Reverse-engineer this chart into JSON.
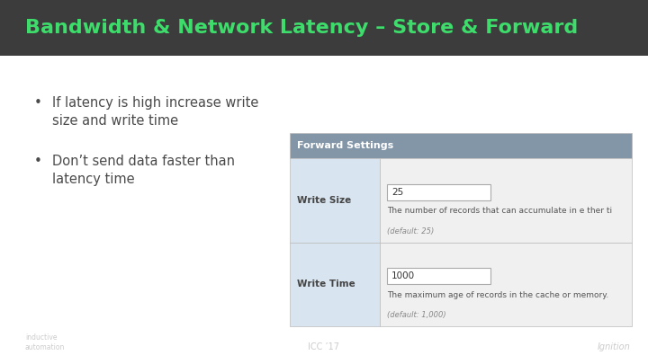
{
  "title": "Bandwidth & Network Latency – Store & Forward",
  "title_bg_color": "#3c3c3c",
  "title_text_color": "#3ddc6b",
  "slide_bg_color": "#ffffff",
  "bullet_points": [
    "If latency is high increase write\nsize and write time",
    "Don’t send data faster than\nlatency time"
  ],
  "bullet_color": "#4a4a4a",
  "bullet_fontsize": 10.5,
  "table_header": "Forward Settings",
  "table_header_bg": "#8296a8",
  "table_header_text": "#ffffff",
  "table_rows": [
    {
      "label": "Write Size",
      "value": "25",
      "desc": "The number of records that can accumulate in e ther ti",
      "subdesc": "(default: 25)"
    },
    {
      "label": "Write Time",
      "value": "1000",
      "desc": "The maximum age of records in the cache or memory.",
      "subdesc": "(default: 1,000)"
    }
  ],
  "table_label_bg": "#d8e4f0",
  "table_row_bg": "#f0f0f0",
  "table_border_color": "#bbbbbb",
  "footer_text_color": "#cccccc",
  "footer_left": "inductive\nautomation",
  "footer_center": "ICC ’17",
  "footer_right": "Ignition"
}
